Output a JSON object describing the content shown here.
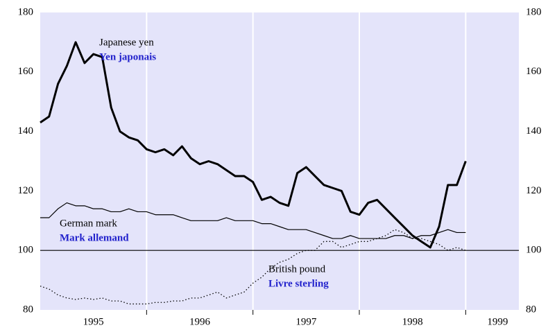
{
  "chart_data": {
    "type": "line",
    "x": [
      1995,
      1995.083,
      1995.167,
      1995.25,
      1995.333,
      1995.417,
      1995.5,
      1995.583,
      1995.667,
      1995.75,
      1995.833,
      1995.917,
      1996,
      1996.083,
      1996.167,
      1996.25,
      1996.333,
      1996.417,
      1996.5,
      1996.583,
      1996.667,
      1996.75,
      1996.833,
      1996.917,
      1997,
      1997.083,
      1997.167,
      1997.25,
      1997.333,
      1997.417,
      1997.5,
      1997.583,
      1997.667,
      1997.75,
      1997.833,
      1997.917,
      1998,
      1998.083,
      1998.167,
      1998.25,
      1998.333,
      1998.417,
      1998.5,
      1998.583,
      1998.667,
      1998.75,
      1998.833,
      1998.917,
      1999
    ],
    "series": [
      {
        "name": "Japanese yen",
        "name_fr": "Yen japonais",
        "color": "#000000",
        "style": "thick",
        "values": [
          143,
          145,
          156,
          162,
          170,
          163,
          166,
          165,
          148,
          140,
          138,
          137,
          134,
          133,
          134,
          132,
          135,
          131,
          129,
          130,
          129,
          127,
          125,
          125,
          123,
          117,
          118,
          116,
          115,
          126,
          128,
          125,
          122,
          121,
          120,
          113,
          112,
          116,
          117,
          114,
          111,
          108,
          105,
          103,
          101,
          108,
          122,
          122,
          130
        ]
      },
      {
        "name": "German mark",
        "name_fr": "Mark allemand",
        "color": "#000000",
        "style": "thin",
        "values": [
          111,
          111,
          114,
          116,
          115,
          115,
          114,
          114,
          113,
          113,
          114,
          113,
          113,
          112,
          112,
          112,
          111,
          110,
          110,
          110,
          110,
          111,
          110,
          110,
          110,
          109,
          109,
          108,
          107,
          107,
          107,
          106,
          105,
          104,
          104,
          105,
          104,
          104,
          104,
          104,
          105,
          105,
          104,
          105,
          105,
          106,
          107,
          106,
          106
        ]
      },
      {
        "name": "British pound",
        "name_fr": "Livre sterling",
        "color": "#000000",
        "style": "dotted",
        "values": [
          88,
          87,
          85,
          84,
          83.5,
          84,
          83.5,
          84,
          83,
          83,
          82,
          82,
          82,
          82.5,
          82.5,
          83,
          83,
          84,
          84,
          85,
          86,
          84,
          85,
          86,
          89,
          91,
          94,
          96,
          97,
          99,
          100,
          100,
          103,
          103,
          101,
          102,
          103,
          103,
          104,
          105,
          107,
          106,
          104,
          104,
          103,
          102,
          100,
          101,
          100
        ]
      }
    ],
    "xlim": [
      1995,
      1999.5
    ],
    "xticks": [
      {
        "value": 1995.5,
        "label": "1995"
      },
      {
        "value": 1996.5,
        "label": "1996"
      },
      {
        "value": 1997.5,
        "label": "1997"
      },
      {
        "value": 1998.5,
        "label": "1998"
      },
      {
        "value": 1999.3,
        "label": "1999"
      }
    ],
    "xgrid": [
      1996,
      1997,
      1998,
      1999
    ],
    "ylim": [
      80,
      180
    ],
    "yticks": [
      80,
      100,
      120,
      140,
      160,
      180
    ],
    "reference_line": 100,
    "background": "#e4e4fa"
  }
}
